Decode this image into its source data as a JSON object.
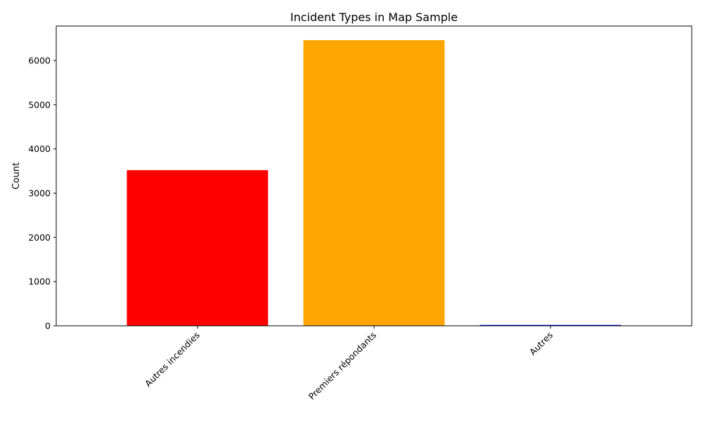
{
  "chart_data": {
    "type": "bar",
    "title": "Incident Types in Map Sample",
    "xlabel": "",
    "ylabel": "Count",
    "categories": [
      "Autres incendies",
      "Premiers répondants",
      "Autres"
    ],
    "values": [
      3520,
      6460,
      20
    ],
    "colors": [
      "#ff0000",
      "#ffa500",
      "#0000ff"
    ],
    "ylim": [
      0,
      6780
    ],
    "yticks": [
      0,
      1000,
      2000,
      3000,
      4000,
      5000,
      6000
    ],
    "grid": false,
    "legend": "none"
  }
}
